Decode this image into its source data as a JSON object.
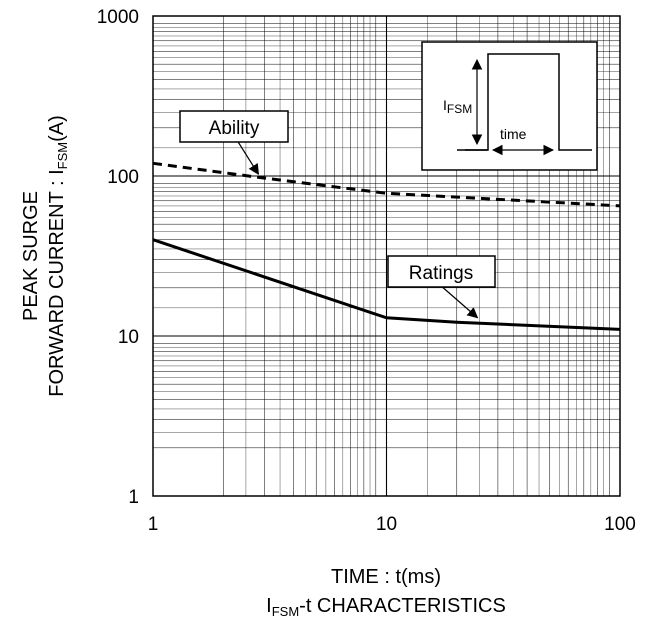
{
  "chart_data": {
    "type": "line",
    "title": "IFSM-t CHARACTERISTICS",
    "title_parts": {
      "main": "I",
      "sub": "FSM",
      "rest": "-t CHARACTERISTICS"
    },
    "xlabel": "TIME : t(ms)",
    "ylabel_line1": "PEAK SURGE",
    "ylabel_line2_parts": {
      "main": "FORWARD CURRENT : I",
      "sub": "FSM",
      "rest": "(A)"
    },
    "x_scale": "log",
    "y_scale": "log",
    "xlim": [
      1,
      100
    ],
    "ylim": [
      1,
      1000
    ],
    "x_ticks": [
      1,
      10,
      100
    ],
    "x_tick_labels": [
      "1",
      "10",
      "100"
    ],
    "y_ticks": [
      1,
      10,
      100,
      1000
    ],
    "y_tick_labels": [
      "1",
      "10",
      "100",
      "1000"
    ],
    "grid": true,
    "series": [
      {
        "name": "Ability",
        "style": "dashed",
        "color": "#000000",
        "x": [
          1,
          3,
          10,
          100
        ],
        "y": [
          120,
          97,
          78,
          65
        ]
      },
      {
        "name": "Ratings",
        "style": "solid",
        "color": "#000000",
        "x": [
          1,
          10,
          20,
          100
        ],
        "y": [
          40,
          13,
          12.2,
          11
        ]
      }
    ],
    "annotations": [
      {
        "label": "Ability",
        "points_to": {
          "x": 3,
          "y": 97
        }
      },
      {
        "label": "Ratings",
        "points_to": {
          "x": 25,
          "y": 12.3
        }
      }
    ],
    "inset": {
      "current_label_parts": {
        "main": "I",
        "sub": "FSM"
      },
      "time_label": "time"
    }
  }
}
